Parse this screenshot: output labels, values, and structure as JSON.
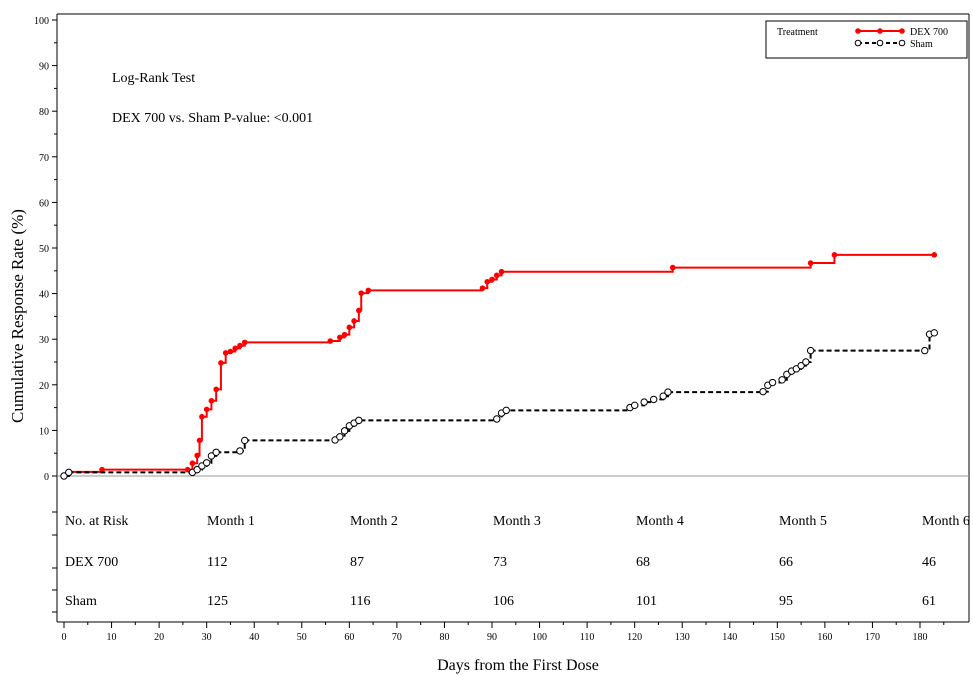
{
  "chart_data": {
    "type": "line",
    "title": "",
    "xlabel": "Days from the First Dose",
    "ylabel": "Cumulative Response Rate (%)",
    "xlim": [
      0,
      190
    ],
    "ylim": [
      0,
      100
    ],
    "x_ticks": [
      0,
      10,
      20,
      30,
      40,
      50,
      60,
      70,
      80,
      90,
      100,
      110,
      120,
      130,
      140,
      150,
      160,
      170,
      180
    ],
    "y_ticks": [
      0,
      10,
      20,
      30,
      40,
      50,
      60,
      70,
      80,
      90,
      100
    ],
    "annotations": [
      "Log-Rank Test",
      "DEX 700 vs. Sham P-value: <0.001"
    ],
    "legend": {
      "title": "Treatment",
      "position": "top-right"
    },
    "series": [
      {
        "name": "DEX 700",
        "color": "#ff0000",
        "line": "solid",
        "marker": "filled-circle",
        "points": [
          [
            0,
            0
          ],
          [
            1,
            0.9
          ],
          [
            8,
            1.4
          ],
          [
            26,
            1.4
          ],
          [
            27,
            2.8
          ],
          [
            28,
            4.5
          ],
          [
            28.5,
            7.8
          ],
          [
            29,
            13
          ],
          [
            30,
            14.6
          ],
          [
            31,
            16.5
          ],
          [
            32,
            19
          ],
          [
            33,
            24.8
          ],
          [
            34,
            27
          ],
          [
            35,
            27.3
          ],
          [
            36,
            28
          ],
          [
            37,
            28.6
          ],
          [
            38,
            29.3
          ],
          [
            56,
            29.6
          ],
          [
            58,
            30.4
          ],
          [
            59,
            31
          ],
          [
            60,
            32.6
          ],
          [
            61,
            34
          ],
          [
            62,
            36.3
          ],
          [
            62.5,
            40.1
          ],
          [
            64,
            40.7
          ],
          [
            88,
            41.2
          ],
          [
            89,
            42.6
          ],
          [
            90,
            43.1
          ],
          [
            91,
            44
          ],
          [
            92,
            44.8
          ],
          [
            128,
            45.7
          ],
          [
            157,
            46.7
          ],
          [
            162,
            48.5
          ],
          [
            183,
            48.5
          ]
        ]
      },
      {
        "name": "Sham",
        "color": "#000000",
        "line": "dashed",
        "marker": "open-circle",
        "points": [
          [
            0,
            0
          ],
          [
            1,
            0.8
          ],
          [
            27,
            0.8
          ],
          [
            28,
            1.4
          ],
          [
            29,
            2.2
          ],
          [
            30,
            2.9
          ],
          [
            31,
            4.4
          ],
          [
            32,
            5.2
          ],
          [
            37,
            5.5
          ],
          [
            38,
            7.8
          ],
          [
            57,
            7.9
          ],
          [
            58,
            8.6
          ],
          [
            59,
            9.9
          ],
          [
            60,
            11
          ],
          [
            61,
            11.6
          ],
          [
            62,
            12.2
          ],
          [
            91,
            12.5
          ],
          [
            92,
            13.8
          ],
          [
            93,
            14.4
          ],
          [
            119,
            15
          ],
          [
            120,
            15.5
          ],
          [
            122,
            16.2
          ],
          [
            124,
            16.8
          ],
          [
            126,
            17.5
          ],
          [
            127,
            18.4
          ],
          [
            147,
            18.5
          ],
          [
            148,
            19.9
          ],
          [
            149,
            20.5
          ],
          [
            151,
            21.1
          ],
          [
            152,
            22.3
          ],
          [
            153,
            23
          ],
          [
            154,
            23.5
          ],
          [
            155,
            24.2
          ],
          [
            156,
            25
          ],
          [
            157,
            27.5
          ],
          [
            181,
            27.5
          ],
          [
            182,
            31.1
          ],
          [
            183,
            31.4
          ]
        ]
      }
    ],
    "risk_table": {
      "header": "No. at Risk",
      "columns": [
        "Month 1",
        "Month 2",
        "Month 3",
        "Month 4",
        "Month 5",
        "Month 6"
      ],
      "rows": [
        {
          "label": "DEX 700",
          "values": [
            "112",
            "87",
            "73",
            "68",
            "66",
            "46"
          ]
        },
        {
          "label": "Sham",
          "values": [
            "125",
            "116",
            "106",
            "101",
            "95",
            "61"
          ]
        }
      ]
    }
  }
}
